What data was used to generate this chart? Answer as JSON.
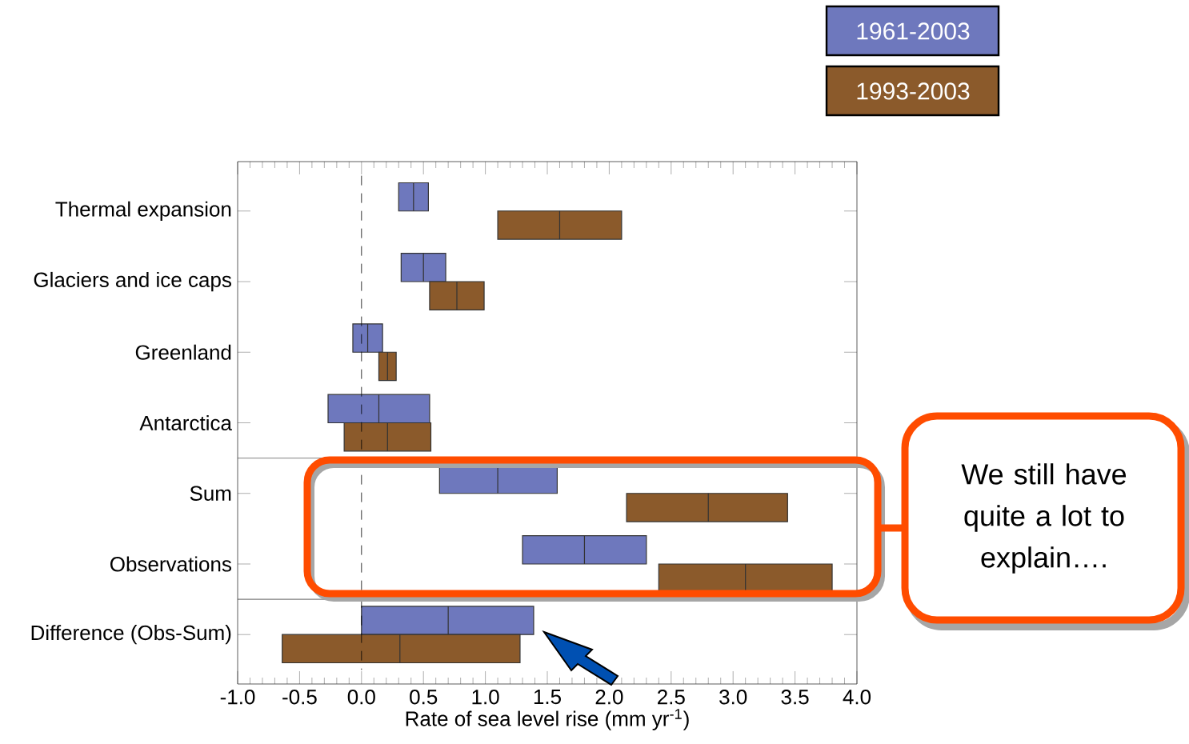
{
  "chart_data": {
    "type": "box",
    "orientation": "horizontal",
    "xlabel": "Rate of sea level rise (mm yr$^{-1}$)",
    "categories": [
      "Thermal expansion",
      "Glaciers and ice caps",
      "Greenland",
      "Antarctica",
      "Sum",
      "Observations",
      "Difference (Obs-Sum)"
    ],
    "series": [
      {
        "name": "1961-2003",
        "color": "#6e78bd",
        "boxes": [
          {
            "low": 0.3,
            "q1": 0.3,
            "median": 0.42,
            "q3": 0.54,
            "high": 0.54
          },
          {
            "low": 0.32,
            "q1": 0.32,
            "median": 0.5,
            "q3": 0.68,
            "high": 0.68
          },
          {
            "low": -0.07,
            "q1": -0.07,
            "median": 0.05,
            "q3": 0.17,
            "high": 0.17
          },
          {
            "low": -0.27,
            "q1": -0.27,
            "median": 0.14,
            "q3": 0.55,
            "high": 0.55
          },
          {
            "low": 0.63,
            "q1": 0.63,
            "median": 1.1,
            "q3": 1.58,
            "high": 1.58
          },
          {
            "low": 1.3,
            "q1": 1.3,
            "median": 1.8,
            "q3": 2.3,
            "high": 2.3
          },
          {
            "low": 0.0,
            "q1": 0.0,
            "median": 0.7,
            "q3": 1.39,
            "high": 1.39
          }
        ]
      },
      {
        "name": "1993-2003",
        "color": "#8b5a2b",
        "boxes": [
          {
            "low": 1.1,
            "q1": 1.1,
            "median": 1.6,
            "q3": 2.1,
            "high": 2.1
          },
          {
            "low": 0.55,
            "q1": 0.55,
            "median": 0.77,
            "q3": 0.99,
            "high": 0.99
          },
          {
            "low": 0.14,
            "q1": 0.14,
            "median": 0.21,
            "q3": 0.28,
            "high": 0.28
          },
          {
            "low": -0.14,
            "q1": -0.14,
            "median": 0.21,
            "q3": 0.56,
            "high": 0.56
          },
          {
            "low": 2.14,
            "q1": 2.14,
            "median": 2.8,
            "q3": 3.44,
            "high": 3.44
          },
          {
            "low": 2.4,
            "q1": 2.4,
            "median": 3.1,
            "q3": 3.8,
            "high": 3.8
          },
          {
            "low": -0.64,
            "q1": -0.64,
            "median": 0.31,
            "q3": 1.28,
            "high": 1.28
          }
        ]
      }
    ],
    "xlim": [
      -1,
      4
    ],
    "xticks": [
      {
        "value": -1,
        "label": "-1.0"
      },
      {
        "value": -0.5,
        "label": "-0.5"
      },
      {
        "value": 0,
        "label": "0.0"
      },
      {
        "value": 0.5,
        "label": "0.5"
      },
      {
        "value": 1,
        "label": "1.0"
      },
      {
        "value": 1.5,
        "label": "1.5"
      },
      {
        "value": 2,
        "label": "2.0"
      },
      {
        "value": 2.5,
        "label": "2.5"
      },
      {
        "value": 3,
        "label": "3.0"
      },
      {
        "value": 3.5,
        "label": "3.5"
      },
      {
        "value": 4,
        "label": "4.0"
      }
    ],
    "ref_lines": [
      {
        "axis": "x",
        "value": 0,
        "line_style": "dashed"
      }
    ],
    "legend": "top right",
    "annotations": [
      "We still have quite a lot to explain…."
    ]
  }
}
